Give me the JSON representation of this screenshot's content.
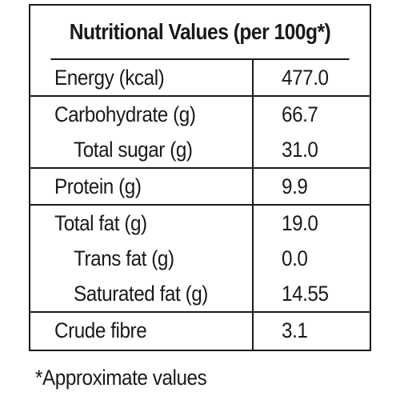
{
  "table": {
    "title": "Nutritional Values (per 100g*)",
    "groups": [
      {
        "rows": [
          {
            "label": "Energy (kcal)",
            "value": "477.0",
            "indent": false
          }
        ]
      },
      {
        "rows": [
          {
            "label": "Carbohydrate (g)",
            "value": "66.7",
            "indent": false
          },
          {
            "label": "Total sugar (g)",
            "value": "31.0",
            "indent": true
          }
        ]
      },
      {
        "rows": [
          {
            "label": "Protein (g)",
            "value": "9.9",
            "indent": false
          }
        ]
      },
      {
        "rows": [
          {
            "label": "Total fat (g)",
            "value": "19.0",
            "indent": false
          },
          {
            "label": "Trans fat (g)",
            "value": "0.0",
            "indent": true
          },
          {
            "label": "Saturated fat (g)",
            "value": "14.55",
            "indent": true
          }
        ]
      },
      {
        "rows": [
          {
            "label": "Crude fibre",
            "value": "3.1",
            "indent": false
          }
        ]
      }
    ]
  },
  "footnote": "*Approximate values"
}
